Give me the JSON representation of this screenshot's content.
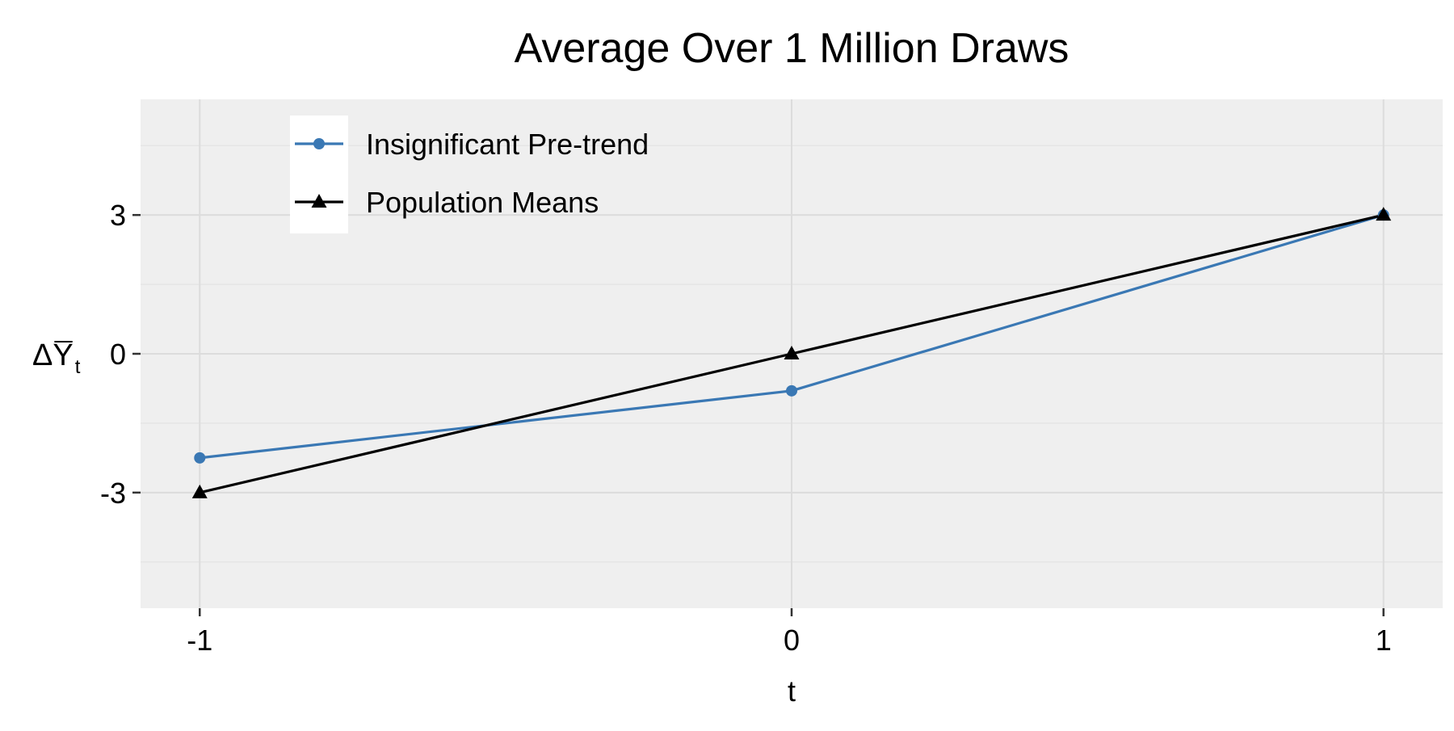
{
  "chart_data": {
    "type": "line",
    "title": "Average Over 1 Million Draws",
    "xlabel": "t",
    "ylabel": {
      "base": "ΔY",
      "overline": true,
      "subscript": "t"
    },
    "x": [
      -1,
      0,
      1
    ],
    "x_ticks": [
      "-1",
      "0",
      "1"
    ],
    "y_ticks": [
      {
        "value": -3,
        "label": "-3"
      },
      {
        "value": 0,
        "label": "0"
      },
      {
        "value": 3,
        "label": "3"
      }
    ],
    "xlim": [
      -1.1,
      1.1
    ],
    "ylim": [
      -5.5,
      5.5
    ],
    "grid": true,
    "legend_position": "top-left",
    "series": [
      {
        "name": "Insignificant Pre-trend",
        "values": [
          -2.25,
          -0.8,
          3.0
        ],
        "color": "#3a78b4",
        "marker": "circle"
      },
      {
        "name": "Population Means",
        "values": [
          -3.0,
          0.0,
          3.0
        ],
        "color": "#000000",
        "marker": "triangle"
      }
    ],
    "colors": {
      "panel_background": "#efefef",
      "grid_major": "#dcdcdc",
      "grid_minor": "#e5e5e5",
      "legend_key_background": "#ffffff"
    }
  }
}
